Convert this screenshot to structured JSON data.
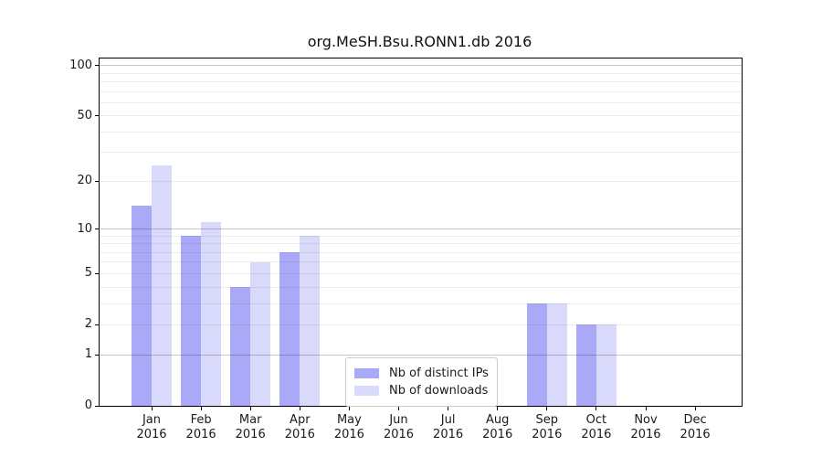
{
  "chart_data": {
    "type": "bar",
    "title": "org.MeSH.Bsu.RONN1.db 2016",
    "categories": [
      "Jan",
      "Feb",
      "Mar",
      "Apr",
      "May",
      "Jun",
      "Jul",
      "Aug",
      "Sep",
      "Oct",
      "Nov",
      "Dec"
    ],
    "x_year_label": "2016",
    "series": [
      {
        "name": "Nb of distinct IPs",
        "color": "#a9a9f7",
        "values": [
          14,
          9,
          4,
          7,
          0,
          0,
          0,
          0,
          3,
          2,
          0,
          0
        ]
      },
      {
        "name": "Nb of downloads",
        "color": "#d9d9fb",
        "values": [
          25,
          11,
          6,
          9,
          0,
          0,
          0,
          0,
          3,
          2,
          0,
          0
        ]
      }
    ],
    "xlabel": "",
    "ylabel": "",
    "yscale": "log1p",
    "ylim": [
      0,
      110
    ],
    "y_ticks": [
      0,
      1,
      2,
      5,
      10,
      20,
      50,
      100
    ],
    "grid": {
      "major_values": [
        1,
        10,
        100
      ],
      "minor_values": [
        2,
        3,
        4,
        5,
        6,
        7,
        8,
        9,
        20,
        30,
        40,
        50,
        60,
        70,
        80,
        90
      ]
    },
    "legend_position": "inside-bottom, left of center",
    "colors": {
      "axis": "#000000",
      "text": "#1a1a1a",
      "major_grid": "#c7c7c7",
      "minor_grid": "#ededed",
      "legend_border": "#cccccc",
      "background": "#ffffff"
    }
  }
}
